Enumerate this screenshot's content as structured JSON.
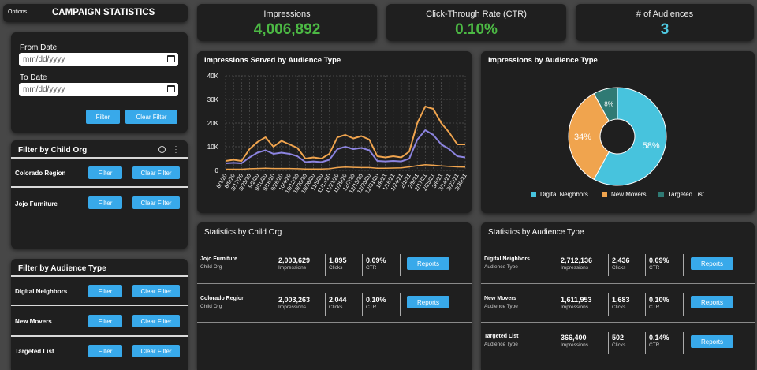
{
  "header": {
    "options_label": "Options",
    "title": "CAMPAIGN STATISTICS"
  },
  "date_filter": {
    "from_label": "From Date",
    "from_placeholder": "mm/dd/yyyy",
    "to_label": "To Date",
    "to_placeholder": "mm/dd/yyyy",
    "filter_button": "Filter",
    "clear_button": "Clear Filter"
  },
  "child_org_filter": {
    "title": "Filter by Child Org",
    "rows": [
      {
        "label": "Colorado Region",
        "filter": "Filter",
        "clear": "Clear Filter"
      },
      {
        "label": "Jojo Furniture",
        "filter": "Filter",
        "clear": "Clear Filter"
      }
    ]
  },
  "audience_filter": {
    "title": "Filter by Audience Type",
    "rows": [
      {
        "label": "Digital Neighbors",
        "filter": "Filter",
        "clear": "Clear Filter"
      },
      {
        "label": "New Movers",
        "filter": "Filter",
        "clear": "Clear Filter"
      },
      {
        "label": "Targeted List",
        "filter": "Filter",
        "clear": "Clear Filter"
      }
    ]
  },
  "kpis": [
    {
      "title": "Impressions",
      "value": "4,006,892",
      "color": "#4cb944"
    },
    {
      "title": "Click-Through Rate (CTR)",
      "value": "0.10%",
      "color": "#4cb944"
    },
    {
      "title": "# of Audiences",
      "value": "3",
      "color": "#4ec8e0"
    }
  ],
  "line_chart_card": {
    "title": "Impressions Served by Audience Type"
  },
  "donut_card": {
    "title": "Impressions by Audience Type"
  },
  "child_stats": {
    "title": "Statistics by Child Org",
    "rows": [
      {
        "name": "Jojo Furniture",
        "type": "Child Org",
        "impressions": "2,003,629",
        "impressions_label": "Impressions",
        "clicks": "1,895",
        "clicks_label": "Clicks",
        "ctr": "0.09%",
        "ctr_label": "CTR",
        "button": "Reports"
      },
      {
        "name": "Colorado Region",
        "type": "Child Org",
        "impressions": "2,003,263",
        "impressions_label": "Impressions",
        "clicks": "2,044",
        "clicks_label": "Clicks",
        "ctr": "0.10%",
        "ctr_label": "CTR",
        "button": "Reports"
      }
    ]
  },
  "audience_stats": {
    "title": "Statistics by Audience Type",
    "rows": [
      {
        "name": "Digital Neighbors",
        "type": "Audience Type",
        "impressions": "2,712,136",
        "impressions_label": "Impressions",
        "clicks": "2,436",
        "clicks_label": "Clicks",
        "ctr": "0.09%",
        "ctr_label": "CTR",
        "button": "Reports"
      },
      {
        "name": "New Movers",
        "type": "Audience Type",
        "impressions": "1,611,953",
        "impressions_label": "Impressions",
        "clicks": "1,683",
        "clicks_label": "Clicks",
        "ctr": "0.10%",
        "ctr_label": "CTR",
        "button": "Reports"
      },
      {
        "name": "Targeted List",
        "type": "Audience Type",
        "impressions": "366,400",
        "impressions_label": "Impressions",
        "clicks": "502",
        "clicks_label": "Clicks",
        "ctr": "0.14%",
        "ctr_label": "CTR",
        "button": "Reports"
      }
    ]
  },
  "chart_data": [
    {
      "type": "line",
      "title": "Impressions Served by Audience Type",
      "ylim": [
        0,
        40000
      ],
      "yticks": [
        "0",
        "10K",
        "20K",
        "30K",
        "40K"
      ],
      "categories": [
        "8/1/20",
        "8/9/20",
        "8/17/20",
        "8/25/20",
        "9/2/20",
        "9/10/20",
        "9/18/20",
        "9/26/20",
        "10/4/20",
        "10/12/20",
        "10/20/20",
        "10/28/20",
        "11/5/20",
        "11/13/20",
        "11/21/20",
        "11/29/20",
        "12/7/20",
        "12/15/20",
        "12/23/20",
        "12/31/20",
        "1/8/21",
        "1/16/21",
        "1/24/21",
        "2/1/21",
        "2/9/21",
        "2/17/21",
        "2/25/21",
        "3/6/21",
        "3/14/21",
        "3/22/21",
        "3/30/21"
      ],
      "grid": true,
      "series": [
        {
          "color": "#f0a44e",
          "values": [
            4000,
            4500,
            4000,
            9000,
            12000,
            14000,
            10000,
            12500,
            11000,
            9500,
            5000,
            5500,
            5000,
            7000,
            14000,
            15000,
            13500,
            14500,
            13000,
            6000,
            5500,
            6000,
            5500,
            8000,
            20000,
            27000,
            26000,
            20000,
            16000,
            11000,
            11000
          ]
        },
        {
          "color": "#8c84e0",
          "values": [
            3000,
            3200,
            3000,
            5500,
            7500,
            8500,
            7000,
            7500,
            7000,
            6000,
            3500,
            3800,
            3500,
            4500,
            9000,
            10000,
            9000,
            9500,
            8500,
            4000,
            3800,
            4000,
            3800,
            5000,
            13000,
            17000,
            15000,
            11000,
            9000,
            6000,
            5500
          ]
        },
        {
          "color": "#f0a44e",
          "values": [
            500,
            500,
            500,
            700,
            800,
            900,
            800,
            800,
            800,
            700,
            600,
            600,
            600,
            700,
            1200,
            1400,
            1300,
            1200,
            1200,
            900,
            900,
            1000,
            1100,
            1500,
            2000,
            2400,
            2200,
            1900,
            1700,
            1500,
            1400
          ]
        }
      ]
    },
    {
      "type": "pie",
      "title": "Impressions by Audience Type",
      "slices": [
        {
          "label": "Digital Neighbors",
          "value": 58,
          "text": "58%",
          "color": "#47c3dd"
        },
        {
          "label": "New Movers",
          "value": 34,
          "text": "34%",
          "color": "#f0a44e"
        },
        {
          "label": "Targeted List",
          "value": 8,
          "text": "8%",
          "color": "#2f7a74"
        }
      ]
    }
  ]
}
